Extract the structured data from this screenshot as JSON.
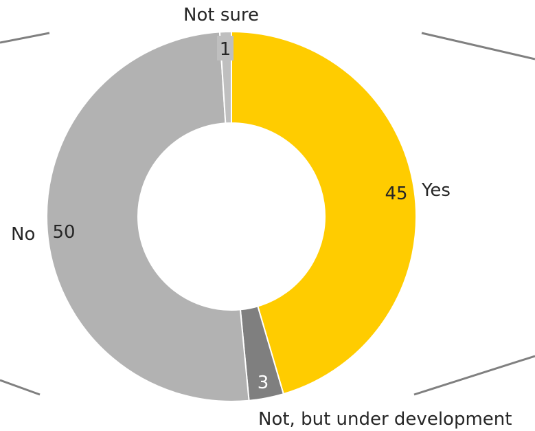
{
  "chart_data": {
    "type": "pie",
    "variant": "donut",
    "categories": [
      "Yes",
      "Not, but under development",
      "No",
      "Not sure"
    ],
    "values": [
      45,
      3,
      50,
      1
    ],
    "colors": [
      "#FFCC00",
      "#7F7F7F",
      "#B2B2B2",
      "#BFBFBF"
    ],
    "value_label_colors": [
      "#262626",
      "#FFFFFF",
      "#262626",
      "#262626"
    ],
    "legend": "none",
    "data_labels": "values inside slices, category names outside"
  }
}
